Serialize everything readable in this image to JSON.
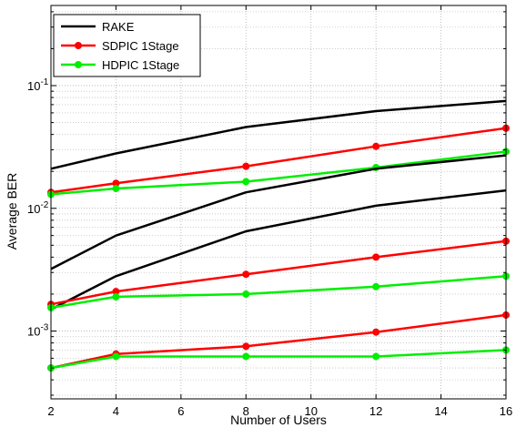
{
  "chart_data": {
    "type": "line",
    "title": "",
    "xlabel": "Number of Users",
    "ylabel": "Average BER",
    "x": [
      2,
      4,
      8,
      12,
      16
    ],
    "xlim": [
      2,
      16
    ],
    "xticks": [
      "2",
      "4",
      "6",
      "8",
      "10",
      "12",
      "14",
      "16"
    ],
    "xtick_values": [
      2,
      4,
      6,
      8,
      10,
      12,
      14,
      16
    ],
    "yscale": "log",
    "ylim": [
      0.00028,
      0.45
    ],
    "yticks": [
      {
        "value": 0.1,
        "base": "10",
        "exp": "-1"
      },
      {
        "value": 0.01,
        "base": "10",
        "exp": "-2"
      },
      {
        "value": 0.001,
        "base": "10",
        "exp": "-3"
      }
    ],
    "grid": true,
    "legend": {
      "placement": "top-left"
    },
    "legend_entries": [
      {
        "name": "RAKE",
        "color": "#000000",
        "marker": "none"
      },
      {
        "name": "SDPIC 1Stage",
        "color": "#ff0000",
        "marker": "circle"
      },
      {
        "name": "HDPIC 1Stage",
        "color": "#00ee00",
        "marker": "circle"
      }
    ],
    "series": [
      {
        "group": "RAKE",
        "color": "#000000",
        "marker": "none",
        "values": [
          0.021,
          0.028,
          0.046,
          0.062,
          0.075
        ]
      },
      {
        "group": "SDPIC 1Stage",
        "color": "#ff0000",
        "marker": "circle",
        "values": [
          0.0135,
          0.016,
          0.022,
          0.032,
          0.045
        ]
      },
      {
        "group": "HDPIC 1Stage",
        "color": "#00ee00",
        "marker": "circle",
        "values": [
          0.013,
          0.0145,
          0.0165,
          0.0215,
          0.029
        ]
      },
      {
        "group": "RAKE",
        "color": "#000000",
        "marker": "none",
        "values": [
          0.0032,
          0.006,
          0.0135,
          0.021,
          0.027
        ]
      },
      {
        "group": "RAKE",
        "color": "#000000",
        "marker": "none",
        "values": [
          0.0015,
          0.0028,
          0.0065,
          0.0105,
          0.014
        ]
      },
      {
        "group": "SDPIC 1Stage",
        "color": "#ff0000",
        "marker": "circle",
        "values": [
          0.00165,
          0.0021,
          0.0029,
          0.004,
          0.0054
        ]
      },
      {
        "group": "HDPIC 1Stage",
        "color": "#00ee00",
        "marker": "circle",
        "values": [
          0.00155,
          0.0019,
          0.002,
          0.0023,
          0.0028
        ]
      },
      {
        "group": "SDPIC 1Stage",
        "color": "#ff0000",
        "marker": "circle",
        "values": [
          0.0005,
          0.00065,
          0.00075,
          0.00098,
          0.00135
        ]
      },
      {
        "group": "HDPIC 1Stage",
        "color": "#00ee00",
        "marker": "circle",
        "values": [
          0.0005,
          0.00062,
          0.00062,
          0.00062,
          0.0007
        ]
      }
    ]
  }
}
